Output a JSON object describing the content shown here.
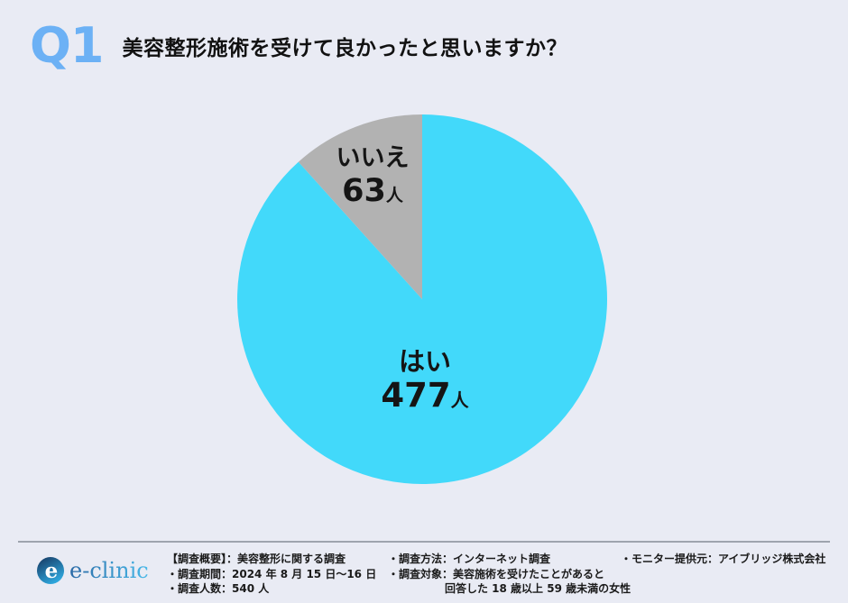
{
  "header": {
    "question_number": "Q1",
    "title": "美容整形施術を受けて良かったと思いますか？"
  },
  "chart_data": {
    "type": "pie",
    "title": "美容整形施術を受けて良かったと思いますか？",
    "total": 540,
    "unit": "人",
    "start_angle_deg": 0,
    "direction": "clockwise",
    "legend_position": "labels-inside-slices",
    "slices": [
      {
        "key": "yes",
        "label": "はい",
        "value": 477,
        "color": "#42D9FA"
      },
      {
        "key": "no",
        "label": "いいえ",
        "value": 63,
        "color": "#B2B2B2"
      }
    ]
  },
  "footer": {
    "brand": "e-clinic",
    "brand_icon_letter": "e",
    "survey_overview": [
      "【調査概要】：美容整形に関する調査",
      "・調査期間：2024 年 8 月 15 日～16 日",
      "・調査人数：540 人"
    ],
    "survey_method": [
      "・調査方法：インターネット調査",
      "・調査対象：美容施術を受けたことがあると",
      "回答した 18 歳以上 59 歳未満の女性"
    ],
    "survey_monitor": [
      "・モニター提供元：アイブリッジ株式会社"
    ]
  },
  "colors": {
    "background": "#E9EBF4",
    "accent_blue": "#6CB1F5",
    "pie_yes": "#42D9FA",
    "pie_no": "#B2B2B2",
    "divider": "#9EA4AE",
    "text": "#111111",
    "logo_gradient_start": "#2B6AA6",
    "logo_gradient_end": "#49B9E9"
  }
}
